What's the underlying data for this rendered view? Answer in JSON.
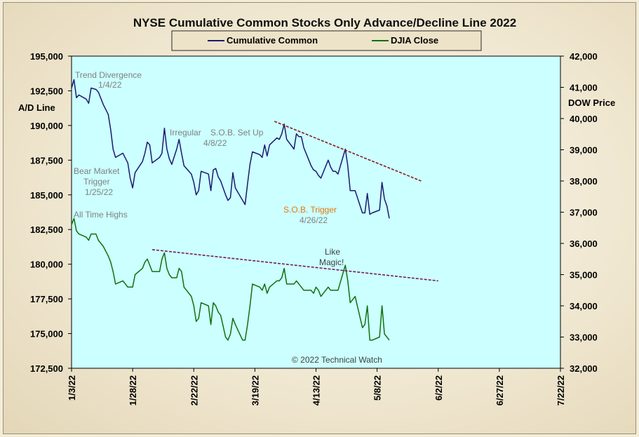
{
  "chart_data": {
    "type": "line",
    "title": "NYSE Cumulative  Common Stocks Only Advance/Decline  Line 2022",
    "ylabel_left": "A/D Line",
    "ylabel_right": "DOW  Price",
    "ylim_left": [
      172500,
      195000
    ],
    "ylim_right": [
      32000,
      42000
    ],
    "left_ticks": [
      "195,000",
      "192,500",
      "190,000",
      "187,500",
      "185,000",
      "182,500",
      "180,000",
      "177,500",
      "175,000",
      "172,500"
    ],
    "right_ticks": [
      "42,000",
      "41,000",
      "40,000",
      "39,000",
      "38,000",
      "37,000",
      "36,000",
      "35,000",
      "34,000",
      "33,000",
      "32,000"
    ],
    "x_ticks": [
      "1/3/22",
      "1/28/22",
      "2/22/22",
      "3/19/22",
      "4/13/22",
      "5/8/22",
      "6/2/22",
      "6/27/22",
      "7/22/22"
    ],
    "x_range_days": [
      0,
      200
    ],
    "legend": {
      "placement": "top-center",
      "entries": [
        "Cumulative Common",
        "DJIA Close"
      ]
    },
    "copyright": "© 2022 Technical Watch",
    "series": [
      {
        "name": "Cumulative Common",
        "axis": "left",
        "color": "#1a1a6e",
        "points": [
          [
            0,
            192700
          ],
          [
            1,
            193300
          ],
          [
            2,
            192000
          ],
          [
            3,
            192200
          ],
          [
            6,
            191900
          ],
          [
            7,
            191600
          ],
          [
            8,
            192700
          ],
          [
            10,
            192600
          ],
          [
            11,
            192400
          ],
          [
            13,
            191500
          ],
          [
            15,
            190800
          ],
          [
            16,
            189700
          ],
          [
            17,
            188300
          ],
          [
            18,
            187700
          ],
          [
            21,
            188000
          ],
          [
            23,
            187300
          ],
          [
            24,
            186200
          ],
          [
            25,
            185500
          ],
          [
            26,
            186600
          ],
          [
            29,
            187400
          ],
          [
            30,
            188000
          ],
          [
            31,
            188800
          ],
          [
            32,
            188600
          ],
          [
            33,
            187300
          ],
          [
            36,
            187700
          ],
          [
            37,
            188000
          ],
          [
            38,
            189800
          ],
          [
            39,
            188300
          ],
          [
            40,
            187600
          ],
          [
            41,
            187200
          ],
          [
            43,
            188300
          ],
          [
            44,
            189000
          ],
          [
            45,
            188000
          ],
          [
            46,
            187100
          ],
          [
            49,
            186500
          ],
          [
            50,
            185900
          ],
          [
            51,
            185000
          ],
          [
            52,
            185300
          ],
          [
            53,
            186700
          ],
          [
            56,
            186500
          ],
          [
            57,
            185300
          ],
          [
            58,
            186800
          ],
          [
            59,
            186900
          ],
          [
            60,
            186300
          ],
          [
            61,
            186000
          ],
          [
            63,
            185000
          ],
          [
            64,
            184600
          ],
          [
            65,
            184800
          ],
          [
            66,
            186600
          ],
          [
            67,
            185500
          ],
          [
            70,
            184600
          ],
          [
            71,
            184300
          ],
          [
            72,
            185800
          ],
          [
            73,
            187200
          ],
          [
            74,
            188100
          ],
          [
            77,
            187900
          ],
          [
            78,
            187700
          ],
          [
            79,
            188600
          ],
          [
            80,
            187800
          ],
          [
            81,
            188600
          ],
          [
            84,
            189100
          ],
          [
            85,
            189000
          ],
          [
            86,
            189400
          ],
          [
            87,
            190100
          ],
          [
            88,
            189000
          ],
          [
            91,
            188300
          ],
          [
            92,
            189400
          ],
          [
            93,
            189200
          ],
          [
            94,
            189200
          ],
          [
            95,
            188400
          ],
          [
            98,
            187100
          ],
          [
            99,
            186800
          ],
          [
            100,
            186700
          ],
          [
            101,
            186400
          ],
          [
            102,
            186200
          ],
          [
            105,
            187500
          ],
          [
            106,
            187000
          ],
          [
            107,
            186700
          ],
          [
            108,
            186700
          ],
          [
            109,
            186500
          ],
          [
            112,
            188300
          ],
          [
            113,
            187100
          ],
          [
            114,
            185300
          ],
          [
            115,
            185300
          ],
          [
            116,
            185300
          ],
          [
            119,
            183700
          ],
          [
            120,
            183700
          ],
          [
            121,
            185100
          ],
          [
            122,
            183600
          ],
          [
            123,
            183700
          ],
          [
            126,
            183900
          ],
          [
            127,
            185900
          ],
          [
            128,
            184700
          ],
          [
            129,
            184200
          ],
          [
            130,
            183300
          ]
        ]
      },
      {
        "name": "DJIA Close",
        "axis": "right",
        "color": "#107010",
        "points": [
          [
            0,
            36600
          ],
          [
            1,
            36800
          ],
          [
            2,
            36400
          ],
          [
            3,
            36300
          ],
          [
            6,
            36200
          ],
          [
            7,
            36100
          ],
          [
            8,
            36300
          ],
          [
            10,
            36300
          ],
          [
            11,
            36100
          ],
          [
            13,
            35900
          ],
          [
            15,
            35600
          ],
          [
            16,
            35400
          ],
          [
            17,
            35100
          ],
          [
            18,
            34700
          ],
          [
            21,
            34800
          ],
          [
            23,
            34600
          ],
          [
            24,
            34600
          ],
          [
            25,
            34600
          ],
          [
            26,
            35000
          ],
          [
            29,
            35200
          ],
          [
            30,
            35400
          ],
          [
            31,
            35500
          ],
          [
            32,
            35300
          ],
          [
            33,
            35100
          ],
          [
            36,
            35100
          ],
          [
            37,
            35500
          ],
          [
            38,
            35700
          ],
          [
            39,
            35200
          ],
          [
            40,
            35000
          ],
          [
            41,
            34900
          ],
          [
            43,
            34900
          ],
          [
            44,
            35200
          ],
          [
            45,
            35100
          ],
          [
            46,
            34600
          ],
          [
            49,
            34300
          ],
          [
            50,
            34000
          ],
          [
            51,
            33500
          ],
          [
            52,
            33600
          ],
          [
            53,
            34100
          ],
          [
            56,
            34000
          ],
          [
            57,
            33400
          ],
          [
            58,
            34100
          ],
          [
            59,
            34000
          ],
          [
            60,
            33800
          ],
          [
            61,
            33700
          ],
          [
            63,
            33000
          ],
          [
            64,
            32900
          ],
          [
            65,
            33100
          ],
          [
            66,
            33600
          ],
          [
            67,
            33400
          ],
          [
            70,
            32900
          ],
          [
            71,
            32900
          ],
          [
            72,
            33400
          ],
          [
            73,
            34000
          ],
          [
            74,
            34700
          ],
          [
            77,
            34600
          ],
          [
            78,
            34500
          ],
          [
            79,
            34700
          ],
          [
            80,
            34400
          ],
          [
            81,
            34600
          ],
          [
            84,
            34800
          ],
          [
            85,
            34800
          ],
          [
            86,
            34900
          ],
          [
            87,
            35200
          ],
          [
            88,
            34700
          ],
          [
            91,
            34700
          ],
          [
            92,
            34800
          ],
          [
            93,
            34700
          ],
          [
            94,
            34600
          ],
          [
            95,
            34500
          ],
          [
            98,
            34500
          ],
          [
            99,
            34400
          ],
          [
            100,
            34600
          ],
          [
            101,
            34500
          ],
          [
            102,
            34300
          ],
          [
            105,
            34600
          ],
          [
            106,
            34500
          ],
          [
            107,
            34500
          ],
          [
            108,
            34500
          ],
          [
            109,
            34500
          ],
          [
            112,
            35300
          ],
          [
            113,
            34800
          ],
          [
            114,
            34100
          ],
          [
            115,
            34200
          ],
          [
            116,
            34300
          ],
          [
            119,
            33300
          ],
          [
            120,
            33400
          ],
          [
            121,
            34000
          ],
          [
            122,
            32900
          ],
          [
            123,
            32900
          ],
          [
            126,
            33000
          ],
          [
            127,
            34000
          ],
          [
            128,
            33100
          ],
          [
            129,
            33000
          ],
          [
            130,
            32900
          ]
        ]
      }
    ],
    "trendlines": [
      {
        "axis": "left",
        "color": "#8b1a1a",
        "from": [
          83,
          190300
        ],
        "to": [
          143,
          186000
        ]
      },
      {
        "axis": "right",
        "color": "#7a1a5a",
        "from": [
          33,
          35800
        ],
        "to": [
          150,
          34800
        ]
      }
    ],
    "annotations": [
      {
        "lines": [
          "Trend  Divergence",
          "1/4/22"
        ],
        "style": "gray"
      },
      {
        "lines": [
          "Irregular"
        ],
        "style": "gray"
      },
      {
        "lines": [
          "S.O.B. Set Up",
          "4/8/22"
        ],
        "style": "gray"
      },
      {
        "lines": [
          "Bear Market",
          "Trigger",
          "1/25/22"
        ],
        "style": "gray"
      },
      {
        "lines": [
          "All Time Highs"
        ],
        "style": "gray"
      },
      {
        "lines": [
          "S.O.B. Trigger"
        ],
        "style": "orange"
      },
      {
        "lines": [
          "4/26/22"
        ],
        "style": "gray"
      },
      {
        "lines": [
          "Like",
          "Magic!"
        ],
        "style": "dark"
      }
    ]
  }
}
